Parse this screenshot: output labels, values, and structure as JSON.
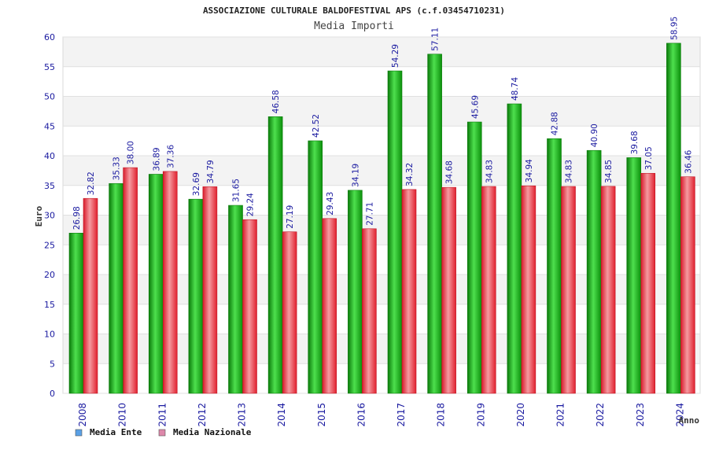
{
  "chart_data": {
    "type": "bar",
    "title": "ASSOCIAZIONE CULTURALE BALDOFESTIVAL APS (c.f.03454710231)",
    "subtitle": "Media Importi",
    "xlabel": "Anno",
    "ylabel": "Euro",
    "ylim": [
      0,
      60
    ],
    "yticks": [
      "0",
      "5",
      "10",
      "15",
      "20",
      "25",
      "30",
      "35",
      "40",
      "45",
      "50",
      "55",
      "60"
    ],
    "grid": true,
    "legend_position": "bottom-left",
    "categories": [
      "2008",
      "2010",
      "2011",
      "2012",
      "2013",
      "2014",
      "2015",
      "2016",
      "2017",
      "2018",
      "2019",
      "2020",
      "2021",
      "2022",
      "2023",
      "2024"
    ],
    "series": [
      {
        "name": "Media Ente",
        "color": "#22aa22",
        "legend_color": "#5aa0e6",
        "values": [
          26.98,
          35.33,
          36.89,
          32.69,
          31.65,
          46.58,
          42.52,
          34.19,
          54.29,
          57.11,
          45.69,
          48.74,
          42.88,
          40.9,
          39.68,
          58.95
        ],
        "labels": [
          "26.98",
          "35.33",
          "36.89",
          "32.69",
          "31.65",
          "46.58",
          "42.52",
          "34.19",
          "54.29",
          "57.11",
          "45.69",
          "48.74",
          "42.88",
          "40.90",
          "39.68",
          "58.95"
        ]
      },
      {
        "name": "Media Nazionale",
        "color": "#e0303a",
        "legend_color": "#dd88aa",
        "values": [
          32.82,
          38.0,
          37.36,
          34.79,
          29.24,
          27.19,
          29.43,
          27.71,
          34.32,
          34.68,
          34.83,
          34.94,
          34.83,
          34.85,
          37.05,
          36.46
        ],
        "labels": [
          "32.82",
          "38.00",
          "37.36",
          "34.79",
          "29.24",
          "27.19",
          "29.43",
          "27.71",
          "34.32",
          "34.68",
          "34.83",
          "34.94",
          "34.83",
          "34.85",
          "37.05",
          "36.46"
        ]
      }
    ]
  }
}
